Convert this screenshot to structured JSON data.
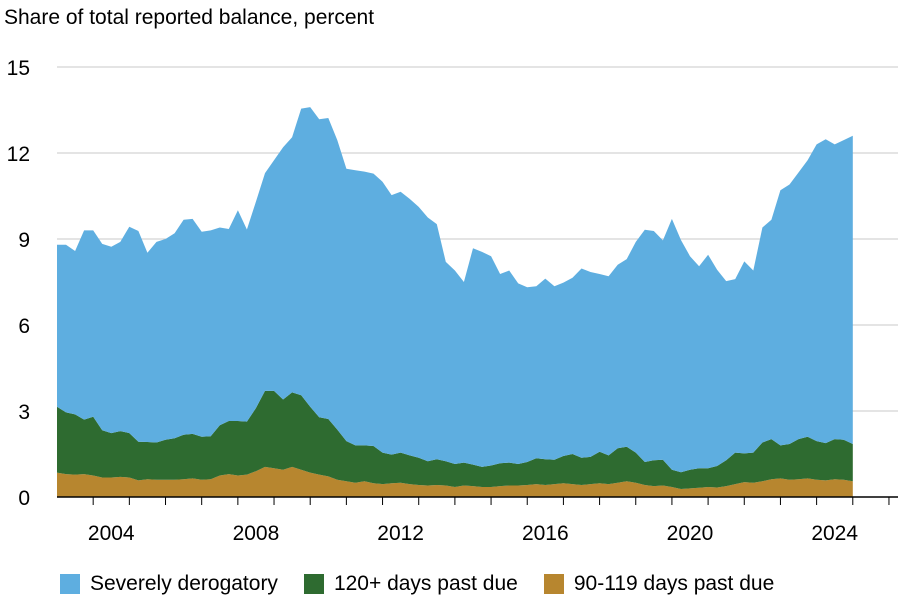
{
  "chart_data": {
    "type": "area",
    "stacked": true,
    "title": "Share of total reported balance, percent",
    "xlabel": "",
    "ylabel": "",
    "xlim": [
      2003.0,
      2026.25
    ],
    "ylim": [
      0,
      15
    ],
    "yticks": [
      "0",
      "3",
      "6",
      "9",
      "12",
      "15"
    ],
    "xticks": [
      "2004",
      "2008",
      "2012",
      "2016",
      "2020",
      "2024"
    ],
    "grid": true,
    "legend_position": "bottom",
    "x_start_year": 2003.0,
    "x_step_years": 0.25,
    "series": [
      {
        "name": "90-119 days past due",
        "color": "#B7862F",
        "values": [
          0.85,
          0.8,
          0.78,
          0.8,
          0.75,
          0.68,
          0.68,
          0.7,
          0.68,
          0.58,
          0.62,
          0.6,
          0.6,
          0.6,
          0.62,
          0.65,
          0.6,
          0.62,
          0.75,
          0.8,
          0.75,
          0.78,
          0.9,
          1.05,
          1.0,
          0.95,
          1.05,
          0.95,
          0.85,
          0.78,
          0.72,
          0.6,
          0.55,
          0.5,
          0.55,
          0.48,
          0.45,
          0.48,
          0.5,
          0.45,
          0.42,
          0.4,
          0.42,
          0.4,
          0.35,
          0.4,
          0.38,
          0.35,
          0.35,
          0.38,
          0.4,
          0.4,
          0.42,
          0.45,
          0.42,
          0.45,
          0.48,
          0.45,
          0.42,
          0.45,
          0.48,
          0.45,
          0.5,
          0.55,
          0.5,
          0.42,
          0.38,
          0.4,
          0.35,
          0.28,
          0.3,
          0.32,
          0.35,
          0.33,
          0.38,
          0.45,
          0.52,
          0.5,
          0.55,
          0.62,
          0.65,
          0.6,
          0.62,
          0.65,
          0.6,
          0.58,
          0.62,
          0.6,
          0.55
        ]
      },
      {
        "name": "120+ days past due",
        "color": "#2E6B30",
        "values": [
          2.3,
          2.15,
          2.1,
          1.9,
          2.05,
          1.65,
          1.55,
          1.6,
          1.55,
          1.35,
          1.3,
          1.3,
          1.4,
          1.45,
          1.55,
          1.55,
          1.5,
          1.5,
          1.75,
          1.85,
          1.9,
          1.85,
          2.2,
          2.65,
          2.7,
          2.45,
          2.6,
          2.6,
          2.3,
          2.0,
          2.0,
          1.75,
          1.4,
          1.3,
          1.25,
          1.3,
          1.1,
          1.0,
          1.05,
          1.0,
          0.95,
          0.85,
          0.9,
          0.85,
          0.8,
          0.8,
          0.75,
          0.7,
          0.75,
          0.8,
          0.8,
          0.75,
          0.8,
          0.9,
          0.9,
          0.85,
          0.95,
          1.05,
          0.95,
          0.95,
          1.1,
          1.0,
          1.2,
          1.2,
          1.05,
          0.8,
          0.9,
          0.9,
          0.6,
          0.58,
          0.65,
          0.68,
          0.65,
          0.75,
          0.9,
          1.1,
          1.0,
          1.05,
          1.35,
          1.4,
          1.15,
          1.25,
          1.4,
          1.45,
          1.35,
          1.3,
          1.4,
          1.4,
          1.3
        ]
      },
      {
        "name": "Severely derogatory",
        "color": "#5EAEE0",
        "values": [
          5.65,
          5.85,
          5.7,
          6.6,
          6.5,
          6.5,
          6.5,
          6.6,
          7.2,
          7.35,
          6.6,
          7.0,
          7.0,
          7.15,
          7.5,
          7.5,
          7.15,
          7.18,
          6.9,
          6.7,
          7.35,
          6.7,
          7.2,
          7.6,
          8.05,
          8.8,
          8.9,
          10.0,
          10.45,
          10.4,
          10.5,
          10.1,
          9.5,
          9.6,
          9.55,
          9.5,
          9.45,
          9.05,
          9.1,
          8.95,
          8.75,
          8.5,
          8.2,
          6.95,
          6.75,
          6.3,
          7.55,
          7.5,
          7.3,
          6.6,
          6.7,
          6.3,
          6.1,
          6.0,
          6.3,
          6.05,
          6.05,
          6.15,
          6.6,
          6.45,
          6.2,
          6.25,
          6.4,
          6.55,
          7.35,
          8.1,
          8.0,
          7.65,
          8.75,
          8.1,
          7.45,
          7.05,
          7.45,
          6.85,
          6.25,
          6.05,
          6.7,
          6.35,
          7.5,
          7.65,
          8.9,
          9.05,
          9.3,
          9.65,
          10.35,
          10.6,
          10.28,
          10.45,
          10.75
        ]
      }
    ]
  },
  "legend": [
    {
      "label": "Severely derogatory",
      "color": "#5EAEE0"
    },
    {
      "label": "120+ days past due",
      "color": "#2E6B30"
    },
    {
      "label": "90-119 days past due",
      "color": "#B7862F"
    }
  ]
}
